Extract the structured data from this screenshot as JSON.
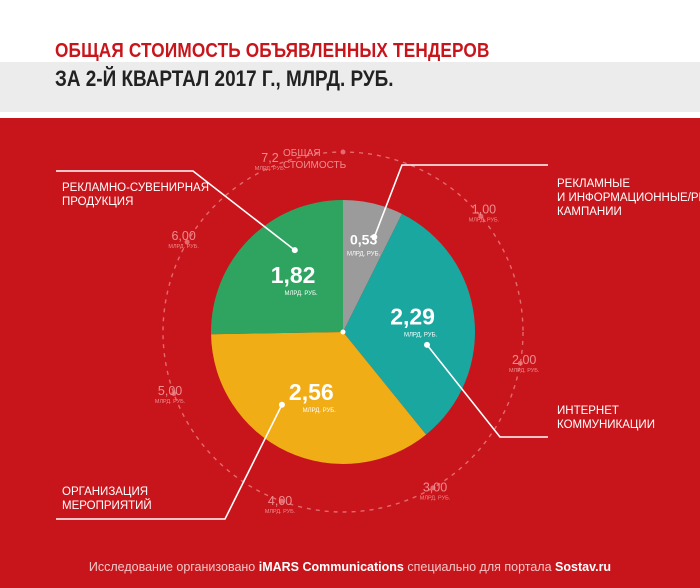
{
  "header": {
    "title_line1": "ОБЩАЯ СТОИМОСТЬ ОБЪЯВЛЕННЫХ ТЕНДЕРОВ",
    "title_line2": "ЗА 2-Й КВАРТАЛ 2017 Г., МЛРД. РУБ."
  },
  "colors": {
    "background": "#c8151b",
    "slice_pr": "#9b9b9b",
    "slice_internet": "#1aa7a0",
    "slice_events": "#f0ad16",
    "slice_souvenirs": "#2ea460"
  },
  "chart_data": {
    "type": "pie",
    "unit": "МЛРД. РУБ.",
    "slices": [
      {
        "category": "РЕКЛАМНЫЕ И ИНФОРМАЦИОННЫЕ/PR КАМПАНИИ",
        "value": 0.53,
        "value_label": "0,53",
        "color": "#9b9b9b"
      },
      {
        "category": "ИНТЕРНЕТ КОММУНИКАЦИИ",
        "value": 2.29,
        "value_label": "2,29",
        "color": "#1aa7a0"
      },
      {
        "category": "ОРГАНИЗАЦИЯ МЕРОПРИЯТИЙ",
        "value": 2.56,
        "value_label": "2,56",
        "color": "#f0ad16"
      },
      {
        "category": "РЕКЛАМНО-СУВЕНИРНАЯ ПРОДУКЦИЯ",
        "value": 1.82,
        "value_label": "1,82",
        "color": "#2ea460"
      }
    ],
    "slice_unit_label": "МЛРД. РУБ.",
    "scale_ticks": [
      {
        "value": 1.0,
        "label": "1,00",
        "unit": "МЛРД. РУБ."
      },
      {
        "value": 2.0,
        "label": "2,00",
        "unit": "МЛРД. РУБ."
      },
      {
        "value": 3.0,
        "label": "3,00",
        "unit": "МЛРД. РУБ."
      },
      {
        "value": 4.0,
        "label": "4,00",
        "unit": "МЛРД. РУБ."
      },
      {
        "value": 5.0,
        "label": "5,00",
        "unit": "МЛРД. РУБ."
      },
      {
        "value": 6.0,
        "label": "6,00",
        "unit": "МЛРД. РУБ."
      },
      {
        "value": 7.2,
        "label": "7,2",
        "unit": "МЛРД. РУБ."
      }
    ],
    "total": {
      "value": 7.2,
      "label": "7,2",
      "caption_line1": "ОБЩАЯ",
      "caption_line2": "СТОИМОСТЬ"
    }
  },
  "category_labels": {
    "pr": {
      "line1": "РЕКЛАМНЫЕ",
      "line2": "И ИНФОРМАЦИОННЫЕ/PR",
      "line3": "КАМПАНИИ"
    },
    "internet": {
      "line1": "ИНТЕРНЕТ",
      "line2": "КОММУНИКАЦИИ"
    },
    "events": {
      "line1": "ОРГАНИЗАЦИЯ",
      "line2": "МЕРОПРИЯТИЙ"
    },
    "souvenirs": {
      "line1": "РЕКЛАМНО-СУВЕНИРНАЯ",
      "line2": "ПРОДУКЦИЯ"
    }
  },
  "footer": {
    "part1": "Исследование организовано ",
    "brand": "iMARS Communications",
    "part2": " специально для портала ",
    "site": "Sostav.ru"
  }
}
